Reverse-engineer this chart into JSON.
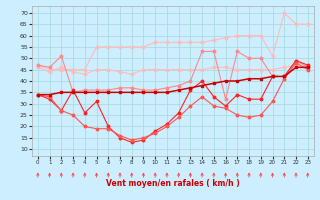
{
  "x": [
    0,
    1,
    2,
    3,
    4,
    5,
    6,
    7,
    8,
    9,
    10,
    11,
    12,
    13,
    14,
    15,
    16,
    17,
    18,
    19,
    20,
    21,
    22,
    23
  ],
  "line_light1": [
    46,
    44,
    46,
    44,
    43,
    45,
    45,
    44,
    43,
    45,
    45,
    45,
    45,
    45,
    45,
    46,
    46,
    45,
    45,
    45,
    45,
    46,
    47,
    46
  ],
  "line_light2": [
    47,
    45,
    45,
    45,
    45,
    55,
    55,
    55,
    55,
    55,
    57,
    57,
    57,
    57,
    57,
    58,
    59,
    60,
    60,
    60,
    51,
    70,
    65,
    65
  ],
  "line_med1": [
    47,
    46,
    51,
    35,
    36,
    36,
    36,
    37,
    37,
    36,
    36,
    37,
    38,
    40,
    53,
    53,
    32,
    53,
    50,
    50,
    42,
    42,
    49,
    46
  ],
  "line_dark1": [
    34,
    34,
    35,
    35,
    35,
    35,
    35,
    35,
    35,
    35,
    35,
    35,
    36,
    37,
    38,
    39,
    40,
    40,
    41,
    41,
    42,
    42,
    46,
    46
  ],
  "line_dark2": [
    34,
    32,
    27,
    36,
    26,
    31,
    20,
    15,
    13,
    14,
    18,
    21,
    26,
    36,
    40,
    33,
    29,
    34,
    32,
    32,
    42,
    42,
    49,
    47
  ],
  "line_dark3": [
    34,
    33,
    27,
    25,
    20,
    19,
    19,
    16,
    14,
    15,
    17,
    20,
    24,
    29,
    33,
    29,
    28,
    25,
    24,
    25,
    31,
    41,
    48,
    45
  ],
  "bg_color": "#cceeff",
  "grid_color": "#aadddd",
  "color_light": "#ffbbbb",
  "color_med": "#ff8888",
  "color_dark": "#cc0000",
  "color_red": "#ff2222",
  "color_red2": "#ff5555",
  "xlabel": "Vent moyen/en rafales ( km/h )",
  "ylabel_ticks": [
    10,
    15,
    20,
    25,
    30,
    35,
    40,
    45,
    50,
    55,
    60,
    65,
    70
  ],
  "ylim": [
    7,
    73
  ],
  "xlim": [
    -0.5,
    23.5
  ],
  "arrow_color": "#ff4444"
}
